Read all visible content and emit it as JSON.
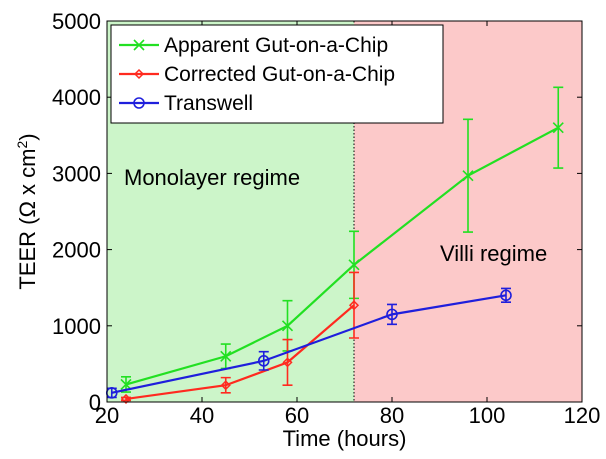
{
  "chart_data": {
    "type": "line",
    "title": "",
    "xlabel": "Time (hours)",
    "ylabel_prefix": "TEER (Ω x cm",
    "ylabel_sup": "2",
    "ylabel_suffix": ")",
    "xlim": [
      20,
      120
    ],
    "ylim": [
      0,
      5000
    ],
    "x_ticks": [
      20,
      40,
      60,
      80,
      100,
      120
    ],
    "y_ticks": [
      0,
      1000,
      2000,
      3000,
      4000,
      5000
    ],
    "grid": false,
    "legend_position": "top-left",
    "regions": [
      {
        "label": "Monolayer regime",
        "x_start": 20,
        "x_end": 72,
        "color": "#ccf5c9"
      },
      {
        "label": "Villi regime",
        "x_start": 72,
        "x_end": 120,
        "color": "#fcc9c9"
      }
    ],
    "divider_x": 72,
    "series": [
      {
        "name": "Apparent Gut-on-a-Chip",
        "color": "#22e022",
        "marker": "x",
        "x": [
          24,
          45,
          58,
          72,
          96,
          115
        ],
        "y": [
          230,
          600,
          1000,
          1800,
          2970,
          3600
        ],
        "err": [
          100,
          160,
          330,
          440,
          740,
          530
        ]
      },
      {
        "name": "Corrected Gut-on-a-Chip",
        "color": "#ff2a1f",
        "marker": "diamond",
        "x": [
          24,
          45,
          58,
          72
        ],
        "y": [
          40,
          220,
          520,
          1270
        ],
        "err": [
          20,
          100,
          300,
          430
        ]
      },
      {
        "name": "Transwell",
        "color": "#1f1fdc",
        "marker": "circle",
        "x": [
          21,
          53,
          80,
          104
        ],
        "y": [
          120,
          540,
          1150,
          1400
        ],
        "err": [
          60,
          120,
          130,
          90
        ]
      }
    ]
  }
}
